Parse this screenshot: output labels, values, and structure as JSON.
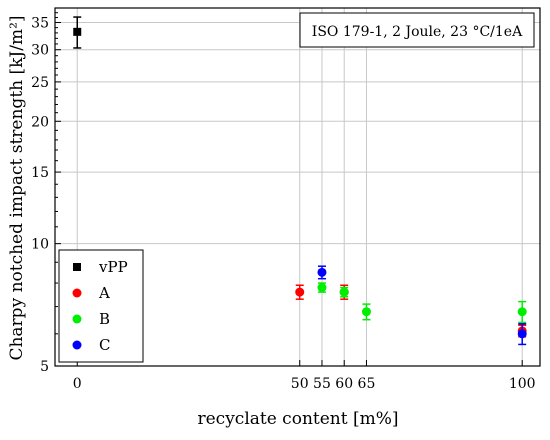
{
  "chart_data": {
    "type": "scatter",
    "title": "",
    "xlabel": "recyclate content [m%]",
    "ylabel": "Charpy notched impact strength [kJ/m²]",
    "annotation": "ISO 179-1, 2 Joule, 23 °C/1eA",
    "x_ticks": [
      0,
      50,
      55,
      60,
      65,
      100
    ],
    "xlim": [
      -5,
      104
    ],
    "y_scale": "log",
    "y_ticks": [
      5,
      10,
      15,
      20,
      25,
      30,
      35
    ],
    "ylim": [
      5,
      38
    ],
    "grid": true,
    "legend_position": "bottom-left",
    "series": [
      {
        "name": "vPP",
        "color": "#000000",
        "marker": "square",
        "points": [
          {
            "x": 0,
            "y": 33.2,
            "err": 2.9
          }
        ]
      },
      {
        "name": "A",
        "color": "#ff0000",
        "marker": "circle",
        "points": [
          {
            "x": 50,
            "y": 7.6,
            "err": 0.3
          },
          {
            "x": 60,
            "y": 7.6,
            "err": 0.3
          },
          {
            "x": 100,
            "y": 6.1,
            "err": 0.2
          }
        ]
      },
      {
        "name": "B",
        "color": "#00ee00",
        "marker": "circle",
        "points": [
          {
            "x": 55,
            "y": 7.8,
            "err": 0.2
          },
          {
            "x": 60,
            "y": 7.6,
            "err": 0.2
          },
          {
            "x": 65,
            "y": 6.8,
            "err": 0.3
          },
          {
            "x": 100,
            "y": 6.8,
            "err": 0.4
          }
        ]
      },
      {
        "name": "C",
        "color": "#0000ff",
        "marker": "circle",
        "points": [
          {
            "x": 55,
            "y": 8.5,
            "err": 0.3
          },
          {
            "x": 100,
            "y": 6.0,
            "err": 0.35
          }
        ]
      }
    ]
  }
}
